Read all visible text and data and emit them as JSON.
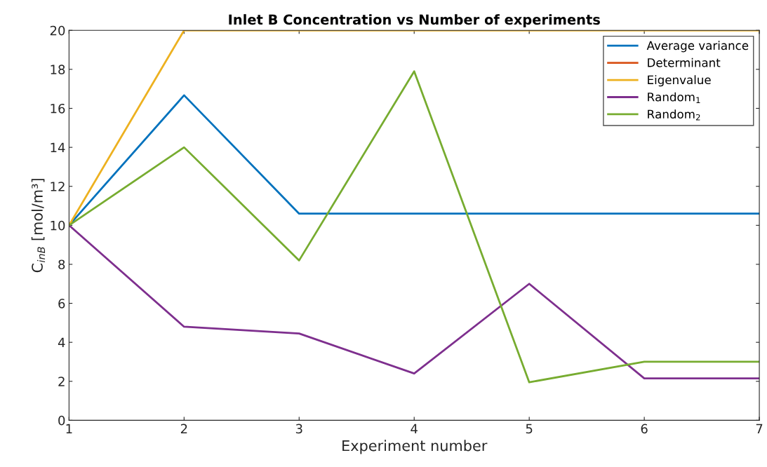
{
  "chart_data": {
    "type": "line",
    "title": "Inlet B Concentration vs Number of experiments",
    "xlabel": "Experiment number",
    "ylabel": "C$_{inB}$ [mol/m³]",
    "x": [
      1,
      2,
      3,
      4,
      5,
      6,
      7
    ],
    "series": [
      {
        "name": "Average variance",
        "color": "#0072bd",
        "values": [
          10,
          16.67,
          10.6,
          10.6,
          10.6,
          10.6,
          10.6
        ]
      },
      {
        "name": "Determinant",
        "color": "#d95319",
        "values": [
          null,
          null,
          null,
          null,
          null,
          null,
          null
        ]
      },
      {
        "name": "Eigenvalue",
        "color": "#edb120",
        "values": [
          10,
          20,
          20,
          20,
          20,
          20,
          20
        ]
      },
      {
        "name": "Random$_{1}$",
        "color": "#7e2f8e",
        "values": [
          10,
          4.8,
          4.45,
          2.4,
          7.0,
          2.15,
          2.15
        ]
      },
      {
        "name": "Random$_{2}$",
        "color": "#77ac30",
        "values": [
          10,
          14.0,
          8.2,
          17.9,
          1.95,
          3.0,
          3.0
        ]
      }
    ],
    "xlim": [
      1,
      7
    ],
    "xticks": [
      1,
      2,
      3,
      4,
      5,
      6,
      7
    ],
    "ylim": [
      0,
      20
    ],
    "yticks": [
      0,
      2,
      4,
      6,
      8,
      10,
      12,
      14,
      16,
      18,
      20
    ],
    "grid": false,
    "legend": "top right",
    "marker": "none",
    "line_style": "solid"
  }
}
